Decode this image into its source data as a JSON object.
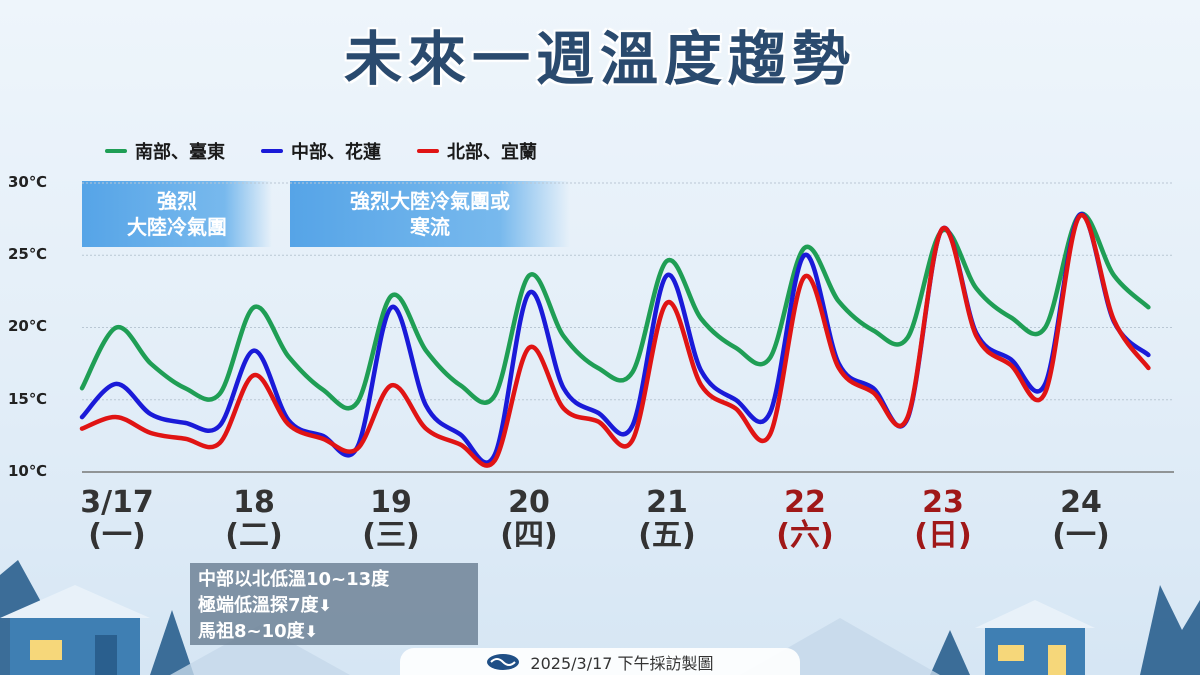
{
  "title": "未來一週溫度趨勢",
  "legend": [
    {
      "label": "南部、臺東",
      "color": "#1f9e55"
    },
    {
      "label": "中部、花蓮",
      "color": "#1a1ad8"
    },
    {
      "label": "北部、宜蘭",
      "color": "#e01414"
    }
  ],
  "bands": [
    {
      "line1": "強烈",
      "line2": "大陸冷氣團"
    },
    {
      "line1": "強烈大陸冷氣團或",
      "line2": "寒流"
    }
  ],
  "note": {
    "line1": "中部以北低溫10~13度",
    "line2": "極端低溫探7度",
    "line3": "馬祖8~10度"
  },
  "footer": "2025/3/17 下午採訪製圖",
  "chart_data": {
    "type": "line",
    "title": "未來一週溫度趨勢",
    "ylim": [
      10,
      30
    ],
    "yticks": [
      "30℃",
      "25℃",
      "20℃",
      "15℃",
      "10℃"
    ],
    "ytick_values": [
      30,
      25,
      20,
      15,
      10
    ],
    "grid": true,
    "legend_position": "top-left",
    "categories": [
      {
        "date": "3/17",
        "weekday": "(一)",
        "weekend": false
      },
      {
        "date": "18",
        "weekday": "(二)",
        "weekend": false
      },
      {
        "date": "19",
        "weekday": "(三)",
        "weekend": false
      },
      {
        "date": "20",
        "weekday": "(四)",
        "weekend": false
      },
      {
        "date": "21",
        "weekday": "(五)",
        "weekend": false
      },
      {
        "date": "22",
        "weekday": "(六)",
        "weekend": true
      },
      {
        "date": "23",
        "weekday": "(日)",
        "weekend": true
      },
      {
        "date": "24",
        "weekday": "(一)",
        "weekend": false
      }
    ],
    "x": [
      0.0,
      0.25,
      0.5,
      0.75,
      1.0,
      1.25,
      1.5,
      1.75,
      2.0,
      2.25,
      2.5,
      2.75,
      3.0,
      3.25,
      3.5,
      3.75,
      4.0,
      4.25,
      4.5,
      4.75,
      5.0,
      5.25,
      5.5,
      5.75,
      6.0,
      6.25,
      6.5,
      6.75,
      7.0,
      7.25,
      7.5,
      7.75
    ],
    "series": [
      {
        "name": "南部、臺東",
        "color": "#1f9e55",
        "values": [
          15.8,
          20.0,
          17.5,
          15.8,
          15.4,
          21.4,
          18.0,
          15.7,
          14.8,
          22.2,
          18.4,
          16.0,
          15.3,
          23.6,
          19.4,
          17.2,
          16.9,
          24.6,
          20.6,
          18.6,
          17.9,
          25.5,
          21.8,
          19.8,
          19.3,
          26.7,
          22.7,
          20.7,
          20.0,
          27.8,
          23.6,
          21.4
        ]
      },
      {
        "name": "中部、花蓮",
        "color": "#1a1ad8",
        "values": [
          13.8,
          16.1,
          14.0,
          13.4,
          13.2,
          18.4,
          13.6,
          12.5,
          11.7,
          21.4,
          14.6,
          12.6,
          11.2,
          22.4,
          15.8,
          14.1,
          13.2,
          23.6,
          17.0,
          15.0,
          14.1,
          25.0,
          17.5,
          15.8,
          13.7,
          26.8,
          19.6,
          17.8,
          16.1,
          27.8,
          20.4,
          18.1
        ]
      },
      {
        "name": "北部、宜蘭",
        "color": "#e01414",
        "values": [
          13.0,
          13.8,
          12.7,
          12.3,
          12.0,
          16.7,
          13.3,
          12.3,
          11.6,
          16.0,
          13.0,
          11.9,
          10.8,
          18.6,
          14.4,
          13.5,
          12.2,
          21.7,
          16.0,
          14.4,
          12.6,
          23.5,
          17.2,
          15.5,
          13.8,
          26.8,
          19.4,
          17.4,
          15.5,
          27.7,
          20.5,
          17.2
        ]
      }
    ]
  }
}
